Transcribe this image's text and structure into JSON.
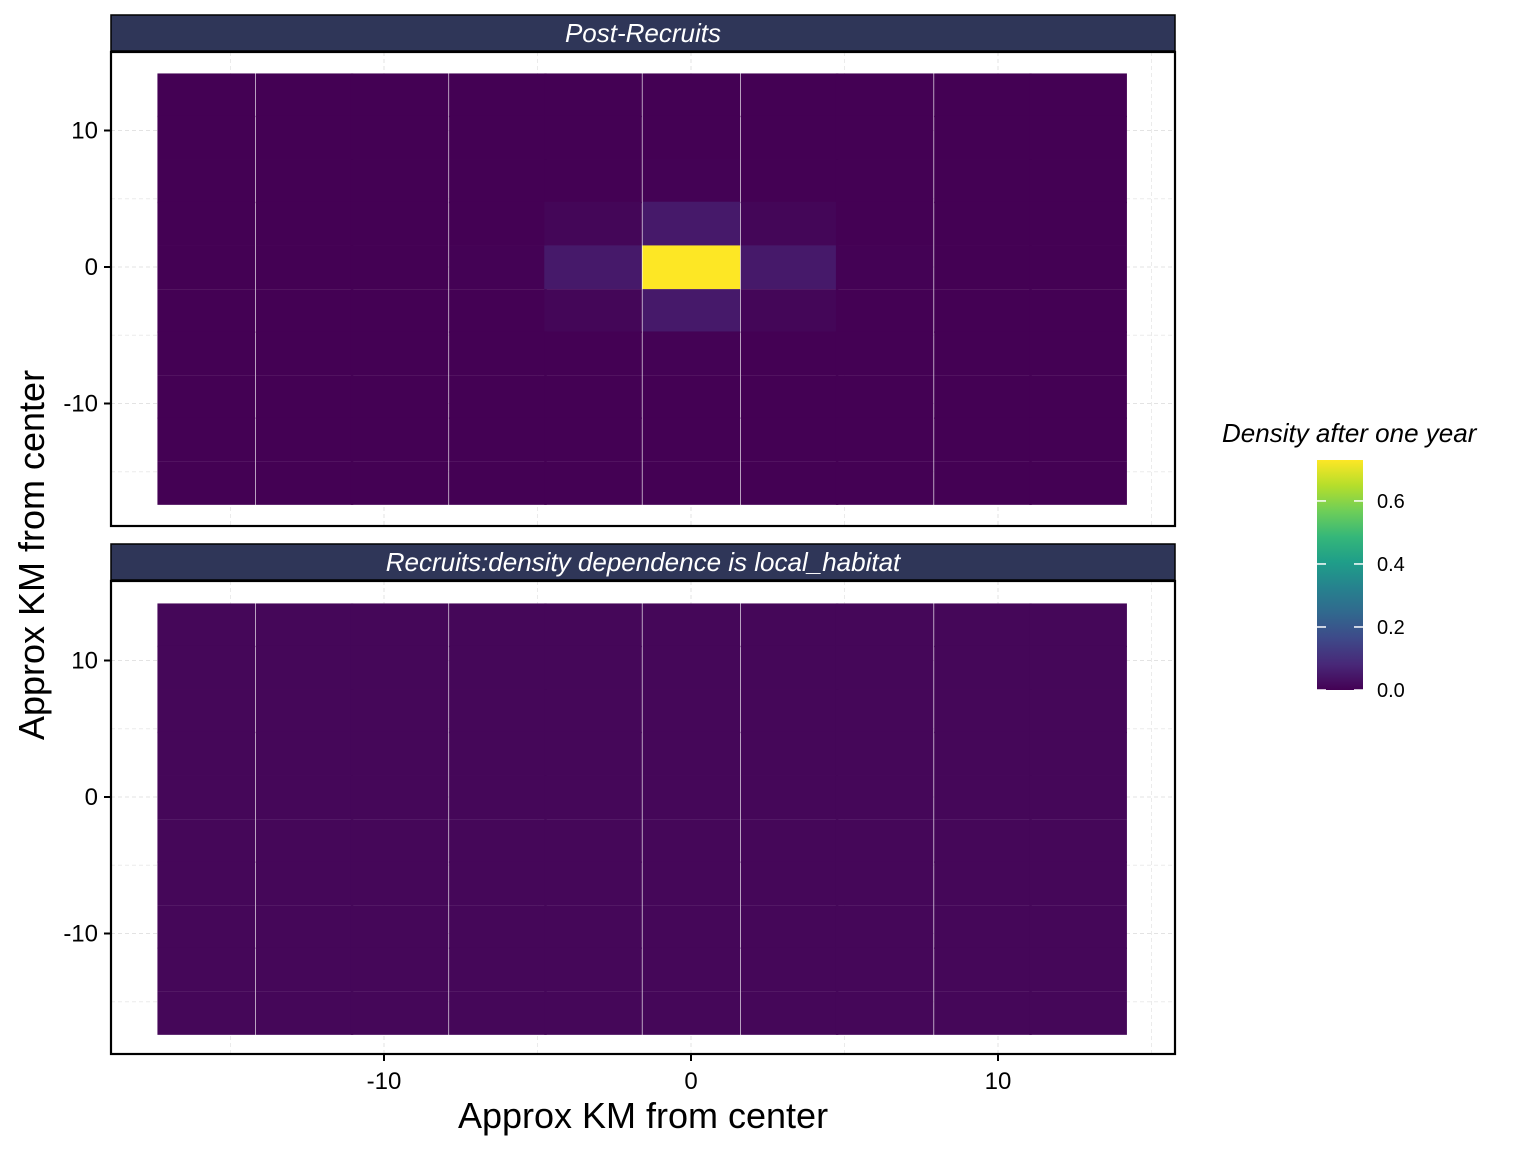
{
  "chart_data": {
    "type": "heatmap",
    "xlabel": "Approx KM from center",
    "ylabel": "Approx KM from center",
    "xlim": [
      -18.5,
      15.5
    ],
    "ylim": [
      -19,
      15.5
    ],
    "x_ticks": [
      -10,
      0,
      10
    ],
    "y_ticks": [
      -10,
      0,
      10
    ],
    "grid": true,
    "x_centers": [
      -15.8,
      -12.6,
      -9.5,
      -6.3,
      -3.2,
      0,
      3.2,
      6.3,
      9.5,
      12.6
    ],
    "y_centers": [
      12.6,
      9.5,
      6.3,
      3.2,
      0,
      -3.2,
      -6.3,
      -9.5,
      -12.6,
      -15.8
    ],
    "legend": {
      "title": "Density after one year",
      "placement": "right",
      "colormap": "viridis",
      "range": [
        0,
        0.73
      ],
      "ticks": [
        "0.0",
        "0.2",
        "0.4",
        "0.6"
      ]
    },
    "facets": [
      {
        "title": "Post-Recruits",
        "z": [
          [
            0,
            0,
            0,
            0,
            0,
            0,
            0,
            0,
            0,
            0
          ],
          [
            0,
            0,
            0,
            0,
            0,
            0,
            0,
            0,
            0,
            0
          ],
          [
            0,
            0,
            0,
            0,
            0,
            0.003,
            0,
            0,
            0,
            0
          ],
          [
            0,
            0,
            0,
            0,
            0.01,
            0.05,
            0.01,
            0,
            0,
            0
          ],
          [
            0,
            0,
            0,
            0.003,
            0.05,
            0.73,
            0.05,
            0.003,
            0,
            0
          ],
          [
            0,
            0,
            0,
            0,
            0.01,
            0.05,
            0.01,
            0,
            0,
            0
          ],
          [
            0,
            0,
            0,
            0,
            0,
            0.003,
            0,
            0,
            0,
            0
          ],
          [
            0,
            0,
            0,
            0,
            0,
            0,
            0,
            0,
            0,
            0
          ],
          [
            0,
            0,
            0,
            0,
            0,
            0,
            0,
            0,
            0,
            0
          ],
          [
            0,
            0,
            0,
            0,
            0,
            0,
            0,
            0,
            0,
            0
          ]
        ]
      },
      {
        "title": "Recruits:density dependence is local_habitat",
        "z": "uniform",
        "uniform_value": 0.012
      }
    ]
  }
}
